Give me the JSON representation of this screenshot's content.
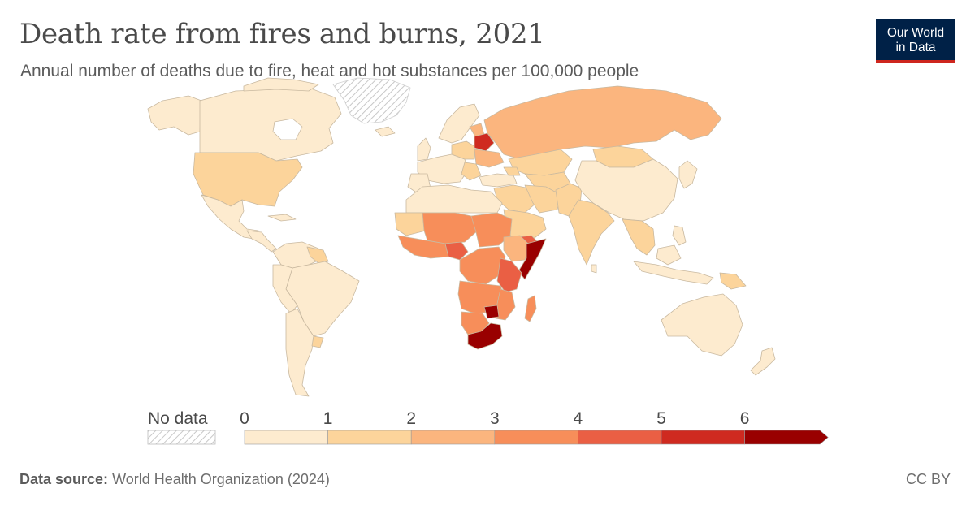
{
  "header": {
    "title": "Death rate from fires and burns, 2021",
    "subtitle": "Annual number of deaths due to fire, heat and hot substances per 100,000 people"
  },
  "logo": {
    "line1": "Our World",
    "line2": "in Data"
  },
  "legend": {
    "no_data_label": "No data",
    "ticks": [
      "0",
      "1",
      "2",
      "3",
      "4",
      "5",
      "6"
    ],
    "bins": [
      {
        "from": 0,
        "to": 1,
        "color": "#fdebcf"
      },
      {
        "from": 1,
        "to": 2,
        "color": "#fcd49b"
      },
      {
        "from": 2,
        "to": 3,
        "color": "#fbb57e"
      },
      {
        "from": 3,
        "to": 4,
        "color": "#f78e5a"
      },
      {
        "from": 4,
        "to": 5,
        "color": "#ea5f44"
      },
      {
        "from": 5,
        "to": 6,
        "color": "#cf2a20"
      },
      {
        "from": 6,
        "to": null,
        "color": "#990000"
      }
    ],
    "no_data_color": "#e6e6e6"
  },
  "footer": {
    "source_label": "Data source:",
    "source_text": "World Health Organization (2024)",
    "license": "CC BY"
  },
  "colors": {
    "border": "#c9b9a0",
    "background": "#ffffff"
  }
}
